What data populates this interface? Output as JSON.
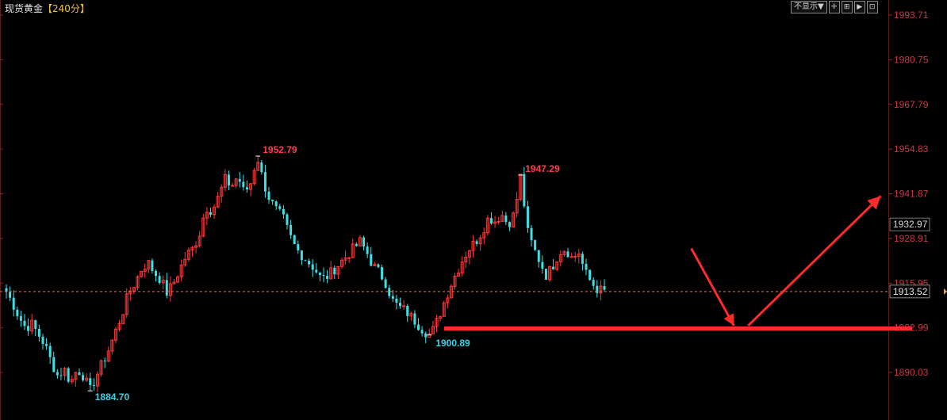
{
  "header": {
    "instrument": "现货黄金",
    "period": "【240分】",
    "display_toggle": "不显示▼",
    "toolbar_icons": [
      "crosshair-icon",
      "expand-icon",
      "step-forward-icon",
      "zoom-icon"
    ]
  },
  "colors": {
    "up": "#ff3535",
    "down": "#3ee0e6",
    "axis_label": "#c83a46",
    "current_price_line": "#d97a5a",
    "support_line": "#ff2a2a",
    "arrow": "#ff2a2a",
    "high_label": "#ff3c4c",
    "low_label": "#3ed2e6"
  },
  "chart_data": {
    "type": "candlestick",
    "ylim": [
      1884.0,
      1995.0
    ],
    "y_tick_labels": [
      "1993.71",
      "1980.75",
      "1967.79",
      "1954.83",
      "1941.87",
      "1928.91",
      "1915.95",
      "1902.99",
      "1890.03"
    ],
    "y_ticks": [
      1993.71,
      1980.75,
      1967.79,
      1954.83,
      1941.87,
      1928.91,
      1915.95,
      1902.99,
      1890.03
    ],
    "marked_price": "1932.97",
    "current_price": "1913.52",
    "support_level": 1902.8,
    "annotations": {
      "high1": "1952.79",
      "high2": "1947.29",
      "low1": "1884.70",
      "low2": "1900.89"
    },
    "close_path": [
      1913.5,
      1910,
      1906,
      1903,
      1904,
      1901,
      1898,
      1893,
      1889,
      1891,
      1887,
      1891,
      1889,
      1884.7,
      1889,
      1893,
      1897,
      1902,
      1907,
      1913,
      1916,
      1920,
      1922,
      1919,
      1917,
      1913,
      1916,
      1920,
      1924,
      1926,
      1930,
      1938,
      1937,
      1941,
      1946,
      1944,
      1947,
      1942,
      1945,
      1952.79,
      1945,
      1940,
      1937,
      1935,
      1930,
      1926,
      1924,
      1922,
      1920,
      1917,
      1918,
      1920,
      1922,
      1924,
      1926,
      1928,
      1925,
      1921,
      1919,
      1916,
      1911,
      1909,
      1908,
      1906,
      1904,
      1902,
      1900.89,
      1905,
      1910,
      1915,
      1919,
      1923,
      1926,
      1928,
      1931,
      1935,
      1934,
      1936,
      1933,
      1936,
      1947.29,
      1931,
      1926,
      1922,
      1918,
      1921,
      1925,
      1926,
      1923,
      1925,
      1919,
      1916,
      1914,
      1913.52
    ],
    "arrow_points": [
      [
        0.73,
        1926
      ],
      [
        0.775,
        1903.6
      ],
      [
        0.79,
        1903.6
      ],
      [
        0.93,
        1941.2
      ]
    ]
  }
}
